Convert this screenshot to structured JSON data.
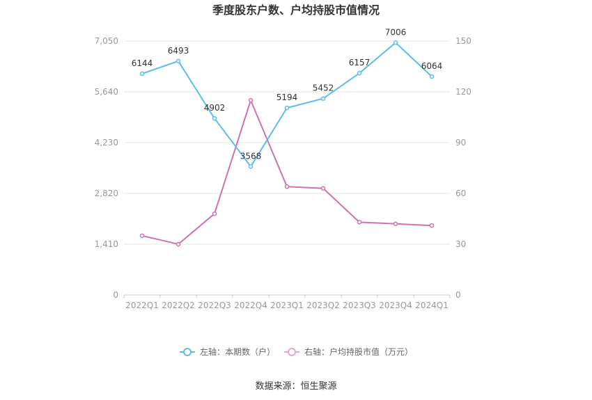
{
  "chart_data": {
    "type": "line",
    "title": "季度股东户数、户均持股市值情况",
    "categories": [
      "2022Q1",
      "2022Q2",
      "2022Q3",
      "2022Q4",
      "2023Q1",
      "2023Q2",
      "2023Q3",
      "2023Q4",
      "2024Q1"
    ],
    "series": [
      {
        "name": "左轴：本期数（户）",
        "axis": "left",
        "color": "#5bbcf0",
        "values": [
          6144,
          6493,
          4902,
          3568,
          5194,
          5452,
          6157,
          7006,
          6064
        ],
        "data_labels": [
          "6144",
          "6493",
          "4902",
          "3568",
          "5194",
          "5452",
          "6157",
          "7006",
          "6064"
        ]
      },
      {
        "name": "右轴：户均持股市值（万元）",
        "axis": "right",
        "color": "#d26fae",
        "values": [
          35,
          30,
          48,
          115,
          64,
          63,
          43,
          42,
          41
        ]
      }
    ],
    "y_left": {
      "min": 0,
      "max": 7050,
      "ticks": [
        0,
        1410,
        2820,
        4230,
        5640,
        7050
      ],
      "tick_labels": [
        "0",
        "1,410",
        "2,820",
        "4,230",
        "5,640",
        "7,050"
      ]
    },
    "y_right": {
      "min": 0,
      "max": 150,
      "ticks": [
        0,
        30,
        60,
        90,
        120,
        150
      ],
      "tick_labels": [
        "0",
        "30",
        "60",
        "90",
        "120",
        "150"
      ]
    },
    "grid": true,
    "legend_position": "bottom",
    "source": "数据来源：恒生聚源"
  }
}
